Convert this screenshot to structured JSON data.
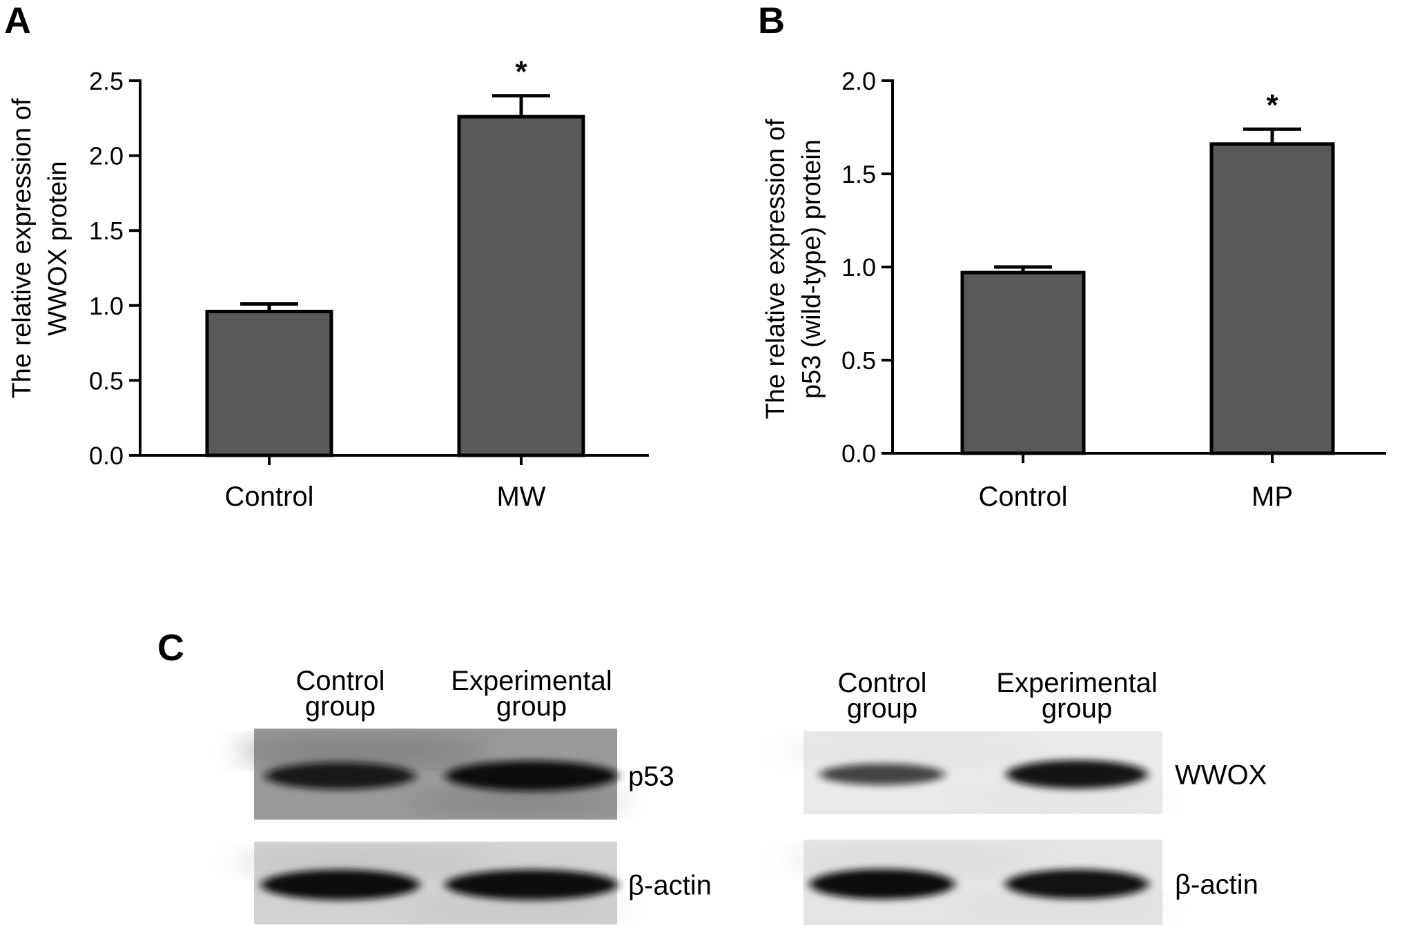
{
  "panels": {
    "A": "A",
    "B": "B",
    "C": "C"
  },
  "chart_data": [
    {
      "panel": "A",
      "type": "bar",
      "categories": [
        "Control",
        "MW"
      ],
      "values": [
        0.96,
        2.26
      ],
      "errors": [
        0.05,
        0.14
      ],
      "significance": [
        "",
        "*"
      ],
      "title": "",
      "xlabel": "",
      "ylabel_lines": [
        "The relative expression of",
        "WWOX protein"
      ],
      "ylim": [
        0,
        2.5
      ],
      "yticks": [
        "0.0",
        "0.5",
        "1.0",
        "1.5",
        "2.0",
        "2.5"
      ],
      "bar_color": "#595959",
      "grid": false
    },
    {
      "panel": "B",
      "type": "bar",
      "categories": [
        "Control",
        "MP"
      ],
      "values": [
        0.97,
        1.66
      ],
      "errors": [
        0.03,
        0.08
      ],
      "significance": [
        "",
        "*"
      ],
      "title": "",
      "xlabel": "",
      "ylabel_lines": [
        "The relative expression of",
        "p53 (wild-type) protein"
      ],
      "ylim": [
        0,
        2.0
      ],
      "yticks": [
        "0.0",
        "0.5",
        "1.0",
        "1.5",
        "2.0"
      ],
      "bar_color": "#595959",
      "grid": false
    }
  ],
  "blots": {
    "left": {
      "lane_labels": [
        [
          "Control",
          "group"
        ],
        [
          "Experimental",
          "group"
        ]
      ],
      "bands": [
        {
          "label": "p53",
          "intensities": [
            0.8,
            1.0
          ]
        },
        {
          "label": "β-actin",
          "intensities": [
            1.0,
            1.0
          ]
        }
      ]
    },
    "right": {
      "lane_labels": [
        [
          "Control",
          "group"
        ],
        [
          "Experimental",
          "group"
        ]
      ],
      "bands": [
        {
          "label": "WWOX",
          "intensities": [
            0.45,
            0.9
          ]
        },
        {
          "label": "β-actin",
          "intensities": [
            1.0,
            0.95
          ]
        }
      ]
    }
  }
}
